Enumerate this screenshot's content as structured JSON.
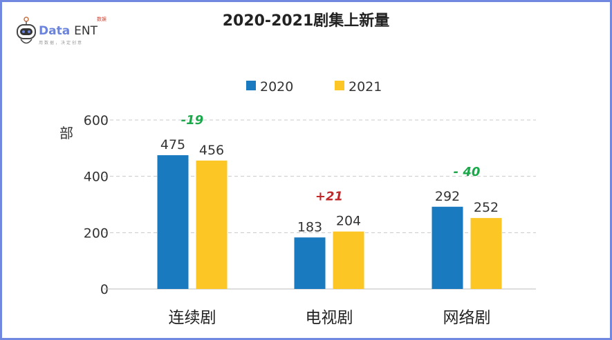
{
  "logo": {
    "text_main": "Data",
    "text_sub": "ENT",
    "tag": "数娱",
    "tagline": "用数据，决定创意"
  },
  "chart_data": {
    "type": "bar",
    "title": "2020-2021剧集上新量",
    "ylabel": "部",
    "xlabel": "",
    "categories": [
      "连续剧",
      "电视剧",
      "网络剧"
    ],
    "series": [
      {
        "name": "2020",
        "values": [
          475,
          183,
          292
        ],
        "color": "#1a7abf"
      },
      {
        "name": "2021",
        "values": [
          456,
          204,
          252
        ],
        "color": "#fcc625"
      }
    ],
    "ylim": [
      0,
      600
    ],
    "yticks": [
      0,
      200,
      400,
      600
    ],
    "grid": true,
    "legend": "top",
    "annotations": [
      {
        "category": "连续剧",
        "text": "-19",
        "color": "#1aa84a"
      },
      {
        "category": "电视剧",
        "text": "+21",
        "color": "#c0282a"
      },
      {
        "category": "网络剧",
        "text": "- 40",
        "color": "#1aa84a"
      }
    ]
  }
}
